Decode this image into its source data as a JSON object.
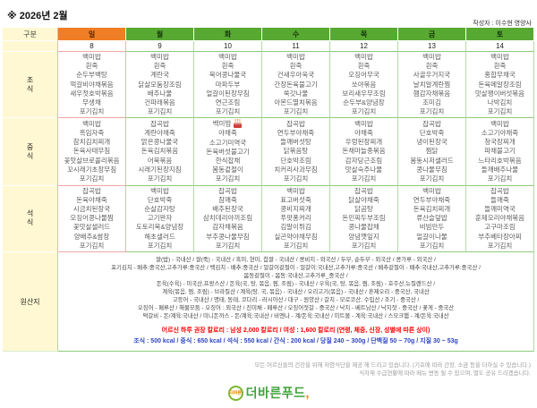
{
  "header": {
    "title": "※ 2026년 2월",
    "author": "작성자 : 이수현 영양사"
  },
  "table": {
    "corner_label": "구분",
    "days": [
      "일",
      "월",
      "화",
      "수",
      "목",
      "금",
      "토"
    ],
    "dates": [
      "8",
      "9",
      "10",
      "11",
      "12",
      "13",
      "14"
    ],
    "meal_rows": [
      {
        "label": "조식",
        "columns": [
          [
            "백미밥",
            "흰죽",
            "순두부백탕",
            "떡갈비야채볶음",
            "새우젓호박볶음",
            "무생채",
            "포기김치"
          ],
          [
            "백미밥",
            "흰죽",
            "계란국",
            "닭살모둠장조림",
            "배추나물",
            "건파래볶음",
            "포기김치"
          ],
          [
            "백미밥",
            "흰죽",
            "북어콩나물국",
            "마파두부",
            "얼갈이된장무침",
            "연근조림",
            "포기김치"
          ],
          [
            "백미밥",
            "흰죽",
            "건새우아욱국",
            "간장돈육불고기",
            "쑥갓나물",
            "아몬드멸치볶음",
            "포기김치"
          ],
          [
            "백미밥",
            "흰죽",
            "오징어무국",
            "쏘야볶음",
            "보리새우무조림",
            "순두부&양념장",
            "포기김치"
          ],
          [
            "백미밥",
            "흰죽",
            "사골우거지국",
            "날치알계란찜",
            "햄감자채볶음",
            "조미김",
            "포기김치"
          ],
          [
            "백미밥",
            "흰죽",
            "홍합무채국",
            "돈육메알장조림",
            "맛살팽이버섯볶음",
            "나박김치",
            "포기김치"
          ]
        ]
      },
      {
        "label": "중식",
        "columns": [
          [
            "백미밥",
            "흑임자죽",
            "참치김치찌개",
            "돈육사태무침",
            "꽃맛살브로콜리볶음",
            "꼬시래기초장무침",
            "포기김치"
          ],
          [
            "잡곡밥",
            "계란야채죽",
            "맑은콩나물국",
            "돈육김치볶음",
            "어묵볶음",
            "시래기된장지짐",
            "포기김치"
          ],
          [
            "백미밥",
            "야채죽",
            "소고기미역국",
            "돈육버섯불고기",
            "한식잡채",
            "봄동겉절이",
            "포기김치"
          ],
          [
            "잡곡밥",
            "연두부야채죽",
            "들깨버섯탕",
            "닭볶음탕",
            "단호박조림",
            "치커리사과무침",
            "포기김치"
          ],
          [
            "백미밥",
            "야채죽",
            "우렁된장찌개",
            "돈채마늘종볶음",
            "감자당근조림",
            "맛살숙주나물",
            "포기김치"
          ],
          [
            "잡곡밥",
            "단호박죽",
            "냉이된장국",
            "찜닭",
            "봄동시저샐러드",
            "콩나물무침",
            "포기김치"
          ],
          [
            "백미밥",
            "소고기야채죽",
            "청국장찌개",
            "파채불고기",
            "느타리호박볶음",
            "들깨배추나물",
            "포기김치"
          ]
        ]
      },
      {
        "label": "석식",
        "columns": [
          [
            "잡곡밥",
            "돈육야채죽",
            "시금치된장국",
            "오징어콩나물찜",
            "꽃맛살샐러드",
            "양배추&쌈장",
            "포기김치"
          ],
          [
            "백미밥",
            "단호박죽",
            "순살감자탕",
            "고기완자",
            "도토리묵&양념장",
            "해초샐러드",
            "포기김치"
          ],
          [
            "잡곡밥",
            "참깨죽",
            "배추된장국",
            "삼치데리야끼조림",
            "감자채볶음",
            "부추콩나물무침",
            "포기김치"
          ],
          [
            "백미밥",
            "표고버섯죽",
            "콩비지찌개",
            "푸팟퐁커리",
            "김말이튀김",
            "실곤약야채무침",
            "포기김치"
          ],
          [
            "잡곡밥",
            "닭살야채죽",
            "닭곰탕",
            "돈민찌두부조림",
            "콩나물잡채",
            "양념깻잎지",
            "포기김치"
          ],
          [
            "백미밥",
            "연두부야채죽",
            "돈육김치찌개",
            "류산슬덮밥",
            "비빔만두",
            "얼갈이나물",
            "포기김치"
          ],
          [
            "잡곡밥",
            "들깨죽",
            "들깨미역국",
            "훈제오리야채볶음",
            "고구마조림",
            "부추베타장아찌",
            "포기김치"
          ]
        ]
      }
    ],
    "birthday": {
      "meal_index": 1,
      "column_index": 2,
      "line_index": 0,
      "icon": "birthday-cake-icon"
    },
    "origin": {
      "label": "원산지",
      "lines": [
        "쌀(밥) - 국내산 / 쌀(죽) - 국내산 / 흑미, 현미, 찹쌀 - 국내산 / 콩비지 - 외국산 / 두부, 순두부 - 외국산 / 콩가루 - 외국산 /",
        "포기김치 - 배추:중국산,고추가루:중국산 / 백김치 - 배추:중국산 / 얼갈이겉절이 - 얼갈이:국내산,고추가루:중국산 / 배추겉절이 - 배추:국내산,고추가루:중국산 /",
        "봄동겉절이 - 봄동:국내산,고추가루_중국산 /",
        "돈육(수육) - 미국산,프랑스산 / 돈육(국, 탕, 볶음, 찜, 조림) - 국내산 / 우육(국, 탕, 볶음, 찜, 조림) - 호주산,뉴질랜드산 /",
        "계육(볶음, 찜, 조림) - 브라질산 / 계육(탕, 국, 볶음) - 국내산 / 오리고기(볶음) - 국내산 / 훈제오리 - 중국산, 국내산",
        "고등어 - 국내산 / 명태, 동태, 코다리 - 러시아산 / 대구 - 원양산 / 갈치 - 모로코산, 수입산 / 조기 - 중국산 /",
        "오징어 - 페루산 / 해물모둠 - 오징어 : 외국산 / 진미채 - 페루산 / 오징어젓갈 - 중국산 / 낙지 - 베트남산 / 낙지젓 - 중국산 / 꽃게 - 중국산",
        "떡갈비 - 돈/계육:국내산 / 미니돈까스 - 돈/계육:국내산 / 비엔나 - 계/돈육:국내산 / 미트볼 - 계육:국내산 / 스모크햄 - 계/돈육:국내산"
      ]
    },
    "calorie_note_red": "어르신 하루 권장 칼로리 : 남성 2,000 칼로리 / 여성 : 1,600 칼로리 (연령, 체중, 신장, 성별에 따른 상이)",
    "calorie_note_blue": "조식 : 500 kcal / 중식 : 650 kcal / 석식 : 550 kcal / 간식 : 200 kcal / 당질 240 ~ 300g / 단백질 50 ~ 70g / 지질 30 ~ 53g"
  },
  "footer": {
    "note1": "모든 어르신들의 건강을 위해 저염식단을 제공 해 드리고 있습니다. (기호에 따라 간장, 소금 등을 더하실 수 있습니다.)",
    "note2": "식자재 수급현황에 따라 메뉴 변동 될 수 있으며, 별도 공유 드리겠습니다.",
    "logo_circle_text": "더바른",
    "logo_text": "더바른푸드",
    "logo_swoosh": ","
  },
  "colors": {
    "sunday_header": "#F07E26",
    "weekday_header": "#57A932",
    "label_bg": "#FFF8D2",
    "grid_green": "#8fca7c",
    "grid_pink": "#f0a8a2",
    "calorie_red": "#FE0000",
    "calorie_blue": "#2E45C0",
    "logo_green": "#3FA43B",
    "logo_orange": "#F08300"
  }
}
